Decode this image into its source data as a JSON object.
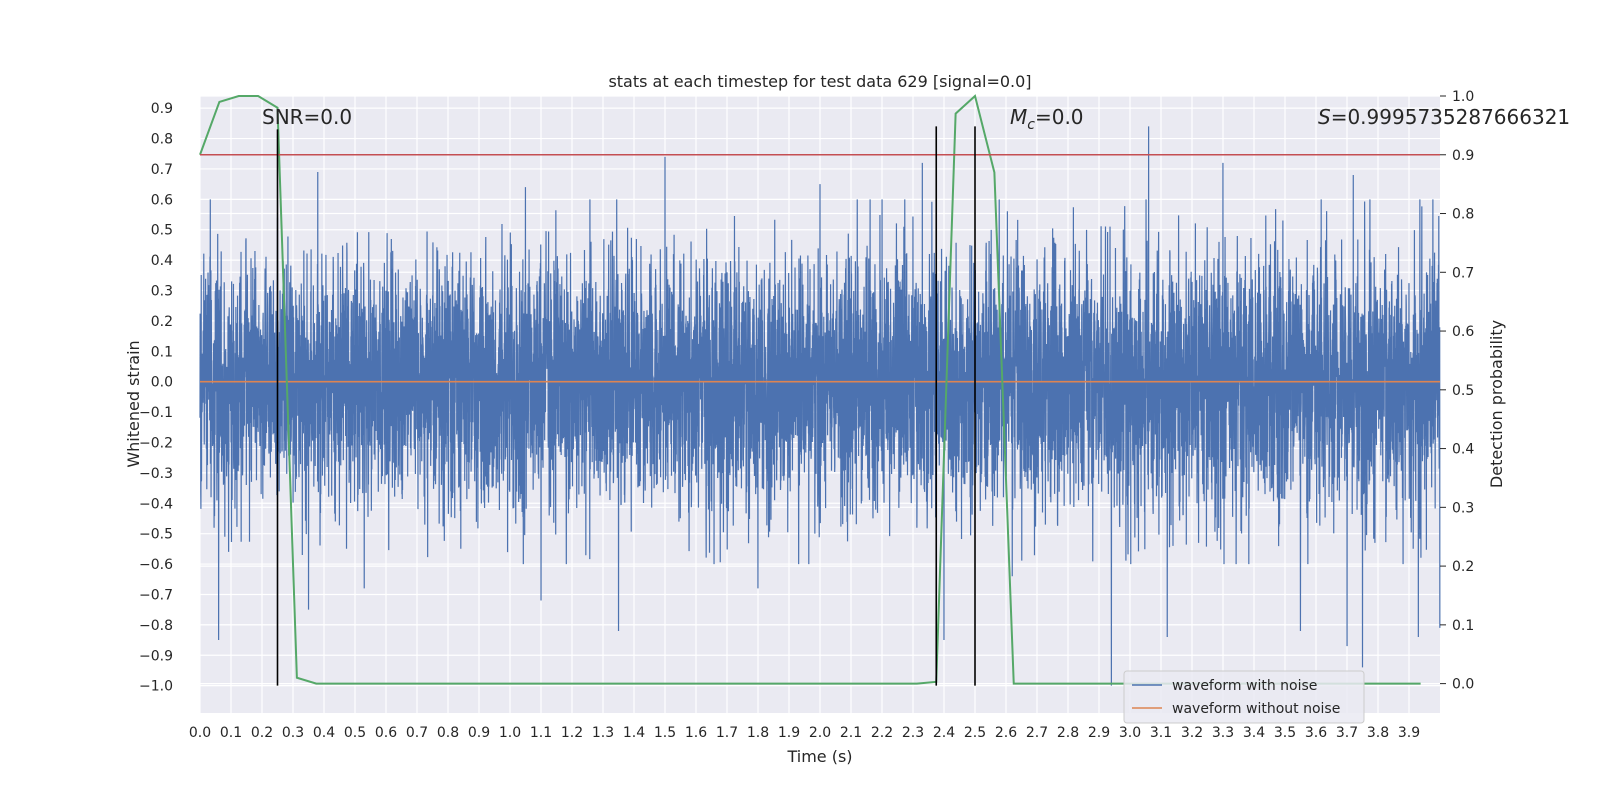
{
  "chart_data": {
    "type": "line",
    "title": "stats at each timestep for test data 629 [signal=0.0]",
    "xlabel": "Time (s)",
    "ylabel": "Whitened strain",
    "y2label": "Detection probability",
    "xlim": [
      0.0,
      4.0
    ],
    "ylim": [
      -1.09,
      0.94
    ],
    "y2lim": [
      -0.05,
      1.0
    ],
    "x_ticks": [
      0.0,
      0.1,
      0.2,
      0.3,
      0.4,
      0.5,
      0.6,
      0.7,
      0.8,
      0.9,
      1.0,
      1.1,
      1.2,
      1.3,
      1.4,
      1.5,
      1.6,
      1.7,
      1.8,
      1.9,
      2.0,
      2.1,
      2.2,
      2.3,
      2.4,
      2.5,
      2.6,
      2.7,
      2.8,
      2.9,
      3.0,
      3.1,
      3.2,
      3.3,
      3.4,
      3.5,
      3.6,
      3.7,
      3.8,
      3.9
    ],
    "y_ticks": [
      0.9,
      0.8,
      0.7,
      0.6,
      0.5,
      0.4,
      0.3,
      0.2,
      0.1,
      0.0,
      -0.1,
      -0.2,
      -0.3,
      -0.4,
      -0.5,
      -0.6,
      -0.7,
      -0.8,
      -0.9,
      -1.0
    ],
    "y2_ticks": [
      0.0,
      0.1,
      0.2,
      0.3,
      0.4,
      0.5,
      0.6,
      0.7,
      0.8,
      0.9,
      1.0
    ],
    "grid": true,
    "legend_position": "bottom-right",
    "annotations": {
      "snr": "SNR=0.0",
      "mc_symbol": "M",
      "mc_sub": "c",
      "mc_value": "=0.0",
      "s_symbol": "S",
      "s_value": "=0.9995735287666321"
    },
    "series": [
      {
        "name": "waveform with noise",
        "axis": "left",
        "color": "#4c72b0",
        "style": "noise",
        "sample_rate": 2048,
        "spikes": [
          {
            "x": 0.06,
            "y": -0.85
          },
          {
            "x": 0.08,
            "y": -0.51
          },
          {
            "x": 0.25,
            "y": 0.54
          },
          {
            "x": 0.33,
            "y": -0.57
          },
          {
            "x": 0.35,
            "y": -0.75
          },
          {
            "x": 0.38,
            "y": 0.69
          },
          {
            "x": 0.53,
            "y": -0.68
          },
          {
            "x": 1.05,
            "y": 0.64
          },
          {
            "x": 1.1,
            "y": -0.72
          },
          {
            "x": 1.35,
            "y": -0.82
          },
          {
            "x": 1.5,
            "y": 0.74
          },
          {
            "x": 1.8,
            "y": -0.68
          },
          {
            "x": 2.0,
            "y": 0.65
          },
          {
            "x": 2.33,
            "y": 0.72
          },
          {
            "x": 2.4,
            "y": -0.85
          },
          {
            "x": 2.62,
            "y": -0.64
          },
          {
            "x": 2.94,
            "y": -1.0
          },
          {
            "x": 3.06,
            "y": 0.84
          },
          {
            "x": 3.12,
            "y": -0.84
          },
          {
            "x": 3.3,
            "y": 0.72
          },
          {
            "x": 3.55,
            "y": 0.68
          },
          {
            "x": 3.55,
            "y": -0.82
          },
          {
            "x": 3.7,
            "y": -0.87
          },
          {
            "x": 3.72,
            "y": 0.68
          },
          {
            "x": 3.75,
            "y": -0.94
          },
          {
            "x": 3.93,
            "y": 0.65
          },
          {
            "x": 3.93,
            "y": -0.84
          },
          {
            "x": 4.0,
            "y": -0.81
          }
        ]
      },
      {
        "name": "waveform without noise",
        "axis": "left",
        "color": "#dd8452",
        "x": [
          0.0,
          4.0
        ],
        "y": [
          0.0,
          0.0
        ]
      },
      {
        "name": "detection probability",
        "axis": "right",
        "color": "#55a868",
        "x": [
          0.0,
          0.0625,
          0.125,
          0.1875,
          0.25,
          0.3125,
          0.375,
          0.4375,
          0.5,
          2.3125,
          2.375,
          2.4375,
          2.5,
          2.5625,
          2.625,
          2.6875,
          3.9375
        ],
        "y": [
          0.9,
          0.99,
          1.0,
          1.0,
          0.98,
          0.01,
          0.0,
          0.0,
          0.0,
          0.0,
          0.003,
          0.97,
          1.0,
          0.87,
          0.0,
          0.0,
          0.0
        ]
      }
    ],
    "threshold": {
      "axis": "right",
      "y": 0.9,
      "color": "#c44e52"
    },
    "vlines": [
      {
        "x": 0.25,
        "ymin": -1.0,
        "ymax": 0.83
      },
      {
        "x": 2.375,
        "ymin": -1.0,
        "ymax": 0.84
      },
      {
        "x": 2.5,
        "ymin": -1.0,
        "ymax": 0.84
      }
    ]
  }
}
